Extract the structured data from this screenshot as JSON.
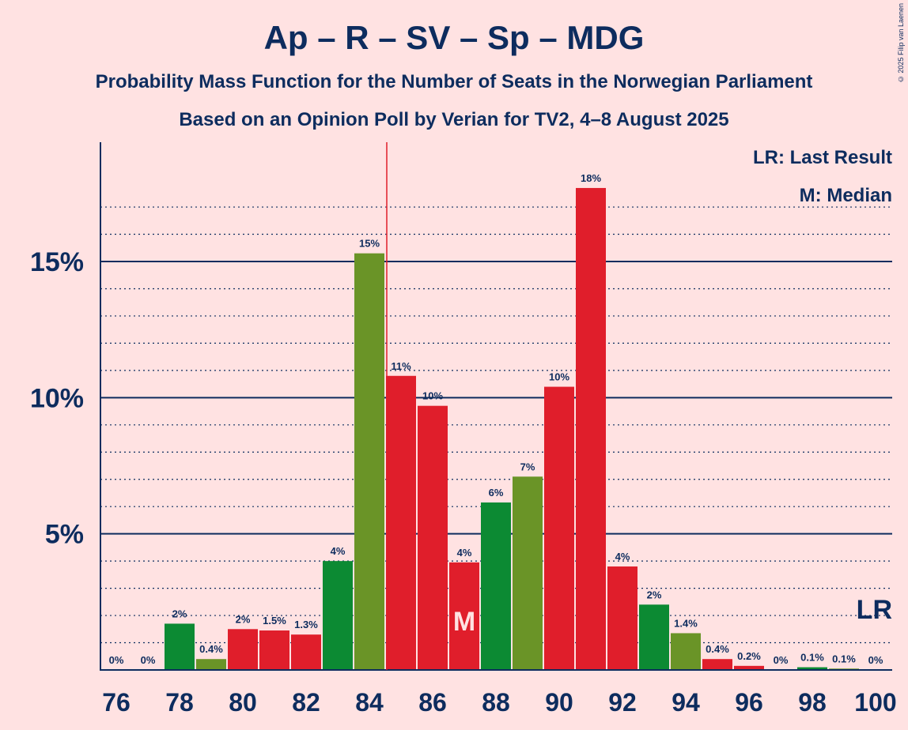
{
  "title": "Ap – R – SV – Sp – MDG",
  "subtitle": "Probability Mass Function for the Number of Seats in the Norwegian Parliament",
  "subtitle2": "Based on an Opinion Poll by Verian for TV2, 4–8 August 2025",
  "copyright": "© 2025 Filip van Laenen",
  "legend": {
    "lr": "LR: Last Result",
    "m": "M: Median"
  },
  "markers": {
    "median_label": "M",
    "last_result_label": "LR"
  },
  "colors": {
    "background": "#ffe2e2",
    "axis": "#0d2c5e",
    "red": "#e01e2b",
    "green_dark": "#0c8a33",
    "green_olive": "#6a9427",
    "last_result_line": "#e01e2b"
  },
  "chart_data": {
    "type": "bar",
    "title": "Ap – R – SV – Sp – MDG",
    "xlabel": "",
    "ylabel": "",
    "ylim": [
      0,
      19.2
    ],
    "x_ticks": [
      "76",
      "78",
      "80",
      "82",
      "84",
      "86",
      "88",
      "90",
      "92",
      "94",
      "96",
      "98",
      "100"
    ],
    "y_ticks": [
      "5%",
      "10%",
      "15%"
    ],
    "median_seat": 87,
    "last_result_seat": 84.5,
    "bars": [
      {
        "seat": 76,
        "value": 0,
        "label": "0%",
        "color": "green_dark"
      },
      {
        "seat": 77,
        "value": 0,
        "label": "0%",
        "color": "green_olive"
      },
      {
        "seat": 78,
        "value": 1.7,
        "label": "2%",
        "color": "green_dark"
      },
      {
        "seat": 79,
        "value": 0.4,
        "label": "0.4%",
        "color": "green_olive"
      },
      {
        "seat": 80,
        "value": 1.5,
        "label": "2%",
        "color": "red"
      },
      {
        "seat": 81,
        "value": 1.45,
        "label": "1.5%",
        "color": "red"
      },
      {
        "seat": 82,
        "value": 1.3,
        "label": "1.3%",
        "color": "red"
      },
      {
        "seat": 83,
        "value": 4.0,
        "label": "4%",
        "color": "green_dark"
      },
      {
        "seat": 84,
        "value": 15.3,
        "label": "15%",
        "color": "green_olive"
      },
      {
        "seat": 85,
        "value": 10.8,
        "label": "11%",
        "color": "red"
      },
      {
        "seat": 86,
        "value": 9.7,
        "label": "10%",
        "color": "red"
      },
      {
        "seat": 87,
        "value": 3.95,
        "label": "4%",
        "color": "red"
      },
      {
        "seat": 88,
        "value": 6.15,
        "label": "6%",
        "color": "green_dark"
      },
      {
        "seat": 89,
        "value": 7.1,
        "label": "7%",
        "color": "green_olive"
      },
      {
        "seat": 90,
        "value": 10.4,
        "label": "10%",
        "color": "red"
      },
      {
        "seat": 91,
        "value": 17.7,
        "label": "18%",
        "color": "red"
      },
      {
        "seat": 92,
        "value": 3.8,
        "label": "4%",
        "color": "red"
      },
      {
        "seat": 93,
        "value": 2.4,
        "label": "2%",
        "color": "green_dark"
      },
      {
        "seat": 94,
        "value": 1.35,
        "label": "1.4%",
        "color": "green_olive"
      },
      {
        "seat": 95,
        "value": 0.4,
        "label": "0.4%",
        "color": "red"
      },
      {
        "seat": 96,
        "value": 0.15,
        "label": "0.2%",
        "color": "red"
      },
      {
        "seat": 97,
        "value": 0,
        "label": "0%",
        "color": "red"
      },
      {
        "seat": 98,
        "value": 0.1,
        "label": "0.1%",
        "color": "green_dark"
      },
      {
        "seat": 99,
        "value": 0.05,
        "label": "0.1%",
        "color": "green_olive"
      },
      {
        "seat": 100,
        "value": 0,
        "label": "0%",
        "color": "red"
      }
    ]
  }
}
